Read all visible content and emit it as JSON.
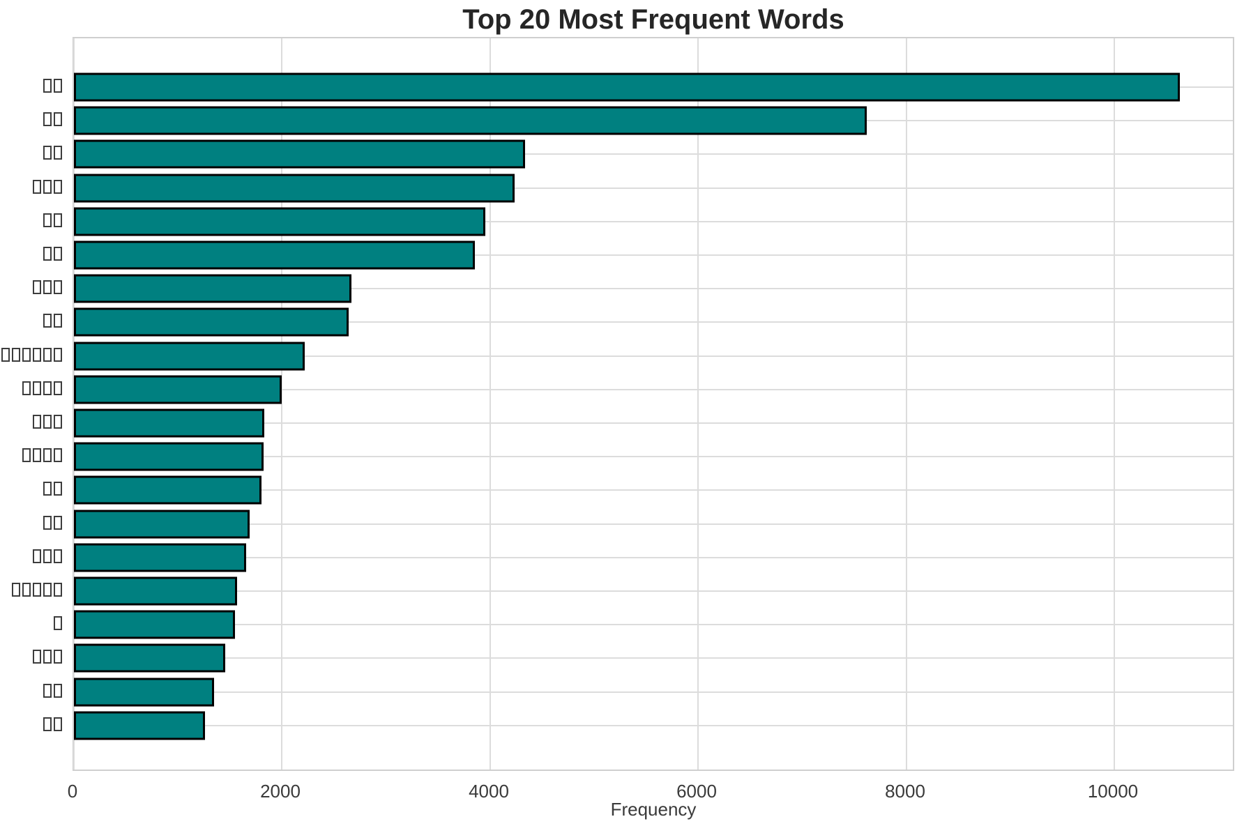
{
  "title": "Top 20 Most Frequent Words",
  "chart_data": {
    "type": "bar",
    "orientation": "horizontal",
    "title": "Top 20 Most Frequent Words",
    "xlabel": "Frequency",
    "ylabel": "",
    "categories": [
      "□□",
      "□□",
      "□□",
      "□□□",
      "□□",
      "□□",
      "□□□",
      "□□",
      "□□□□□□",
      "□□□□",
      "□□□",
      "□□□□",
      "□□",
      "□□",
      "□□□",
      "□□□□□",
      "□",
      "□□□",
      "□□",
      "□□"
    ],
    "values": [
      10630,
      7620,
      4335,
      4235,
      3955,
      3855,
      2670,
      2640,
      2220,
      1995,
      1830,
      1825,
      1800,
      1690,
      1655,
      1570,
      1545,
      1455,
      1350,
      1260
    ],
    "xticks": [
      0,
      2000,
      4000,
      6000,
      8000,
      10000
    ],
    "xtick_labels": [
      "0",
      "2000",
      "4000",
      "6000",
      "8000",
      "10000"
    ],
    "xlim": [
      0,
      11165
    ],
    "grid": true,
    "legend": null,
    "bar_color": "#008080",
    "bar_edge_color": "#000000",
    "grid_color": "#dcdcdc",
    "title_color": "#262626",
    "tick_color": "#3a3a3a"
  }
}
